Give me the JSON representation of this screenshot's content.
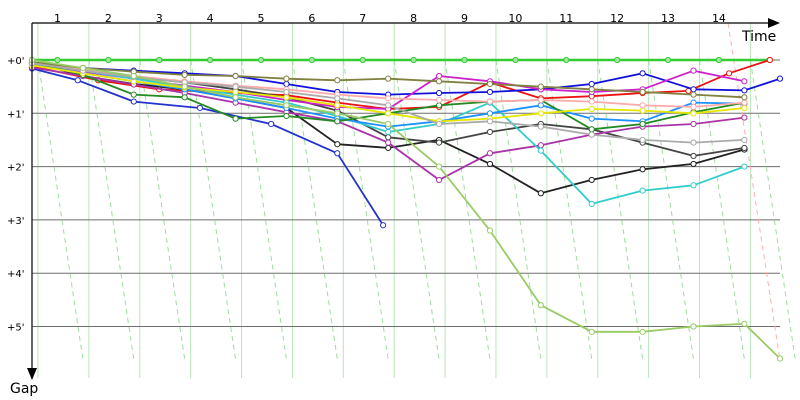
{
  "chart_data": {
    "type": "line",
    "xlabel": "Time",
    "ylabel": "Gap",
    "x_ticks": [
      "1",
      "2",
      "3",
      "4",
      "5",
      "6",
      "7",
      "8",
      "9",
      "10",
      "11",
      "12",
      "13",
      "14"
    ],
    "y_ticks": [
      "+0'",
      "+1'",
      "+2'",
      "+3'",
      "+4'",
      "+5'"
    ],
    "xlim": [
      0.5,
      15.2
    ],
    "ylim": [
      0,
      5.7
    ],
    "y_inverted": true,
    "grid": true,
    "legend": "none",
    "colors": {
      "grid": "#6e6e6e",
      "time_grid": "#b9e6b9",
      "lap_markers": "#9fdc9f",
      "axis": "#000000"
    },
    "series": [
      {
        "color": "#33cc33",
        "marker": "#a0e6a0",
        "x": [
          0.5,
          1.0,
          2.0,
          3.0,
          4.0,
          5.0,
          6.0,
          7.0,
          8.0,
          9.0,
          10.0,
          11.0,
          12.0,
          13.0,
          14.0,
          15.0
        ],
        "y": [
          0.0,
          0.0,
          0.0,
          0.0,
          0.0,
          0.0,
          0.0,
          0.0,
          0.0,
          0.0,
          0.0,
          0.0,
          0.0,
          0.0,
          0.0,
          0.0
        ]
      },
      {
        "color": "#ee1111",
        "marker": "#ffffff",
        "x": [
          0.5,
          1.8,
          3.0,
          4.5,
          5.5,
          6.5,
          7.5,
          8.5,
          9.5,
          10.5,
          11.5,
          12.5,
          13.4,
          14.2,
          15.0
        ],
        "y": [
          0.12,
          0.38,
          0.55,
          0.62,
          0.66,
          0.8,
          0.92,
          0.88,
          0.42,
          0.72,
          0.68,
          0.62,
          0.58,
          0.25,
          0.0
        ]
      },
      {
        "color": "#1111dd",
        "marker": "#ffffff",
        "x": [
          0.5,
          1.5,
          2.5,
          3.5,
          4.5,
          5.5,
          6.5,
          7.5,
          8.5,
          9.5,
          10.5,
          11.5,
          12.5,
          13.5,
          14.5,
          15.2
        ],
        "y": [
          0.1,
          0.15,
          0.2,
          0.25,
          0.3,
          0.45,
          0.6,
          0.65,
          0.62,
          0.6,
          0.55,
          0.45,
          0.25,
          0.55,
          0.57,
          0.35
        ]
      },
      {
        "color": "#2233cc",
        "marker": "#ffffff",
        "x": [
          0.5,
          1.4,
          2.5,
          3.8,
          5.2,
          6.5,
          7.4
        ],
        "y": [
          0.16,
          0.38,
          0.78,
          0.9,
          1.2,
          1.75,
          3.1
        ]
      },
      {
        "color": "#222222",
        "marker": "#ffffff",
        "x": [
          0.5,
          1.5,
          2.5,
          3.5,
          4.5,
          5.5,
          6.5,
          7.5,
          8.5,
          9.5,
          10.5,
          11.5,
          12.5,
          13.5,
          14.5
        ],
        "y": [
          0.04,
          0.3,
          0.45,
          0.55,
          0.72,
          0.9,
          1.58,
          1.65,
          1.5,
          1.95,
          2.5,
          2.25,
          2.05,
          1.95,
          1.68
        ]
      },
      {
        "color": "#444444",
        "marker": "#ffffff",
        "x": [
          0.5,
          1.5,
          2.5,
          3.5,
          4.5,
          5.5,
          6.5,
          7.5,
          8.5,
          9.5,
          10.5,
          11.5,
          12.5,
          13.5,
          14.5
        ],
        "y": [
          0.06,
          0.2,
          0.32,
          0.42,
          0.55,
          0.7,
          0.95,
          1.45,
          1.55,
          1.35,
          1.2,
          1.3,
          1.55,
          1.8,
          1.65
        ]
      },
      {
        "color": "#cc22cc",
        "marker": "#ffffff",
        "x": [
          0.5,
          1.5,
          2.5,
          3.5,
          4.5,
          5.5,
          6.5,
          7.5,
          8.5,
          9.5,
          10.5,
          11.5,
          12.5,
          13.5,
          14.5
        ],
        "y": [
          0.08,
          0.22,
          0.35,
          0.48,
          0.6,
          0.75,
          0.88,
          0.92,
          0.3,
          0.4,
          0.55,
          0.6,
          0.55,
          0.2,
          0.4
        ]
      },
      {
        "color": "#aa33aa",
        "marker": "#ffffff",
        "x": [
          0.5,
          1.5,
          2.5,
          3.5,
          4.5,
          5.5,
          6.5,
          7.5,
          8.5,
          9.5,
          10.5,
          11.5,
          12.5,
          13.5,
          14.5
        ],
        "y": [
          0.14,
          0.3,
          0.46,
          0.62,
          0.8,
          0.98,
          1.15,
          1.55,
          2.25,
          1.75,
          1.6,
          1.4,
          1.25,
          1.2,
          1.08
        ]
      },
      {
        "color": "#33cccc",
        "marker": "#ffffff",
        "x": [
          0.5,
          1.5,
          2.5,
          3.5,
          4.5,
          5.5,
          6.5,
          7.5,
          8.5,
          9.5,
          10.5,
          11.5,
          12.5,
          13.5,
          14.5
        ],
        "y": [
          0.06,
          0.2,
          0.35,
          0.5,
          0.65,
          0.8,
          1.05,
          1.35,
          1.2,
          0.8,
          1.7,
          2.7,
          2.45,
          2.35,
          2.0
        ]
      },
      {
        "color": "#1e90ff",
        "marker": "#ffffff",
        "x": [
          0.5,
          1.5,
          2.5,
          3.5,
          4.5,
          5.5,
          6.5,
          7.5,
          8.5,
          9.5,
          10.5,
          11.5,
          12.5,
          13.5,
          14.5
        ],
        "y": [
          0.08,
          0.25,
          0.4,
          0.55,
          0.72,
          0.9,
          1.1,
          1.25,
          1.15,
          1.0,
          0.85,
          1.1,
          1.15,
          0.8,
          0.82
        ]
      },
      {
        "color": "#228b22",
        "marker": "#ffffff",
        "x": [
          0.5,
          1.5,
          2.5,
          3.5,
          4.5,
          5.5,
          6.5,
          7.5,
          8.5,
          9.5,
          10.5,
          11.5,
          12.5,
          13.5,
          14.5
        ],
        "y": [
          0.04,
          0.28,
          0.65,
          0.7,
          1.1,
          1.05,
          1.15,
          1.0,
          0.85,
          0.78,
          0.75,
          1.3,
          1.2,
          0.98,
          0.8
        ]
      },
      {
        "color": "#e6e600",
        "marker": "#ffffff",
        "x": [
          0.5,
          1.5,
          2.5,
          3.5,
          4.5,
          5.5,
          6.5,
          7.5,
          8.5,
          9.5,
          10.5,
          11.5,
          12.5,
          13.5,
          14.5
        ],
        "y": [
          0.1,
          0.25,
          0.4,
          0.52,
          0.6,
          0.7,
          0.85,
          1.0,
          1.15,
          1.1,
          1.0,
          0.92,
          0.95,
          1.0,
          0.9
        ]
      },
      {
        "color": "#ffaaaa",
        "marker": "#ffffff",
        "x": [
          0.5,
          1.5,
          2.5,
          3.5,
          4.5,
          5.5,
          6.5,
          7.5,
          8.5,
          9.5,
          10.5,
          11.5,
          12.5,
          13.5,
          14.5
        ],
        "y": [
          0.05,
          0.18,
          0.3,
          0.4,
          0.48,
          0.55,
          0.65,
          0.72,
          0.75,
          0.78,
          0.75,
          0.78,
          0.85,
          0.88,
          0.8
        ]
      },
      {
        "color": "#808040",
        "marker": "#ffffff",
        "x": [
          0.5,
          1.5,
          2.5,
          3.5,
          4.5,
          5.5,
          6.5,
          7.5,
          8.5,
          9.5,
          10.5,
          11.5,
          12.5,
          13.5,
          14.5
        ],
        "y": [
          0.04,
          0.15,
          0.22,
          0.28,
          0.3,
          0.35,
          0.38,
          0.35,
          0.4,
          0.45,
          0.5,
          0.55,
          0.6,
          0.65,
          0.7
        ]
      },
      {
        "color": "#aaaaaa",
        "marker": "#ffffff",
        "x": [
          0.5,
          1.5,
          2.5,
          3.5,
          4.5,
          5.5,
          6.5,
          7.5,
          8.5,
          9.5,
          10.5,
          11.5,
          12.5,
          13.5,
          14.5
        ],
        "y": [
          0.06,
          0.2,
          0.32,
          0.42,
          0.5,
          0.6,
          0.72,
          0.85,
          1.2,
          1.15,
          1.25,
          1.4,
          1.5,
          1.55,
          1.5
        ]
      },
      {
        "color": "#99cc66",
        "marker": "#ffffff",
        "x": [
          0.5,
          1.5,
          2.5,
          3.5,
          4.5,
          5.5,
          6.5,
          7.5,
          8.5,
          9.5,
          10.5,
          11.5,
          12.5,
          13.5,
          14.5,
          15.2
        ],
        "y": [
          0.0,
          0.15,
          0.3,
          0.5,
          0.7,
          0.85,
          1.0,
          1.2,
          2.0,
          3.2,
          4.6,
          5.1,
          5.1,
          5.0,
          4.95,
          5.6
        ]
      }
    ]
  }
}
